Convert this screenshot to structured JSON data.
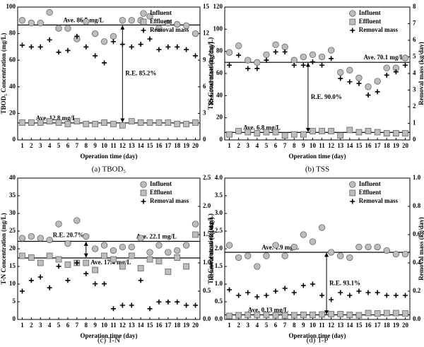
{
  "chart_data": [
    {
      "type": "scatter",
      "caption": "(a)  TBOD₅",
      "xlabel": "Operation time (day)",
      "ylabel": "TBOD₅ Concentration (mg/L)",
      "y2label": "Removal mass (kg/day)",
      "x": [
        1,
        2,
        3,
        4,
        5,
        6,
        7,
        8,
        9,
        10,
        11,
        12,
        13,
        14,
        15,
        16,
        17,
        18,
        19,
        20
      ],
      "xlim": [
        0.5,
        20.5
      ],
      "xticks": [
        1,
        2,
        3,
        4,
        5,
        6,
        7,
        8,
        9,
        10,
        11,
        12,
        13,
        14,
        15,
        16,
        17,
        18,
        19,
        20
      ],
      "ylim": [
        0,
        100
      ],
      "yticks": [
        0,
        20,
        40,
        60,
        80,
        100
      ],
      "y2lim": [
        0,
        15
      ],
      "y2ticks": [
        0,
        3,
        6,
        9,
        12,
        15
      ],
      "series": [
        {
          "name": "Influent",
          "marker": "circle",
          "color": "#bdbdbd",
          "values": [
            90,
            88,
            88,
            96,
            84,
            84,
            76,
            89,
            80,
            74,
            78,
            90,
            90,
            90,
            93,
            84,
            88,
            87,
            86,
            80
          ]
        },
        {
          "name": "Effluent",
          "marker": "square",
          "color": "#bdbdbd",
          "values": [
            13,
            13,
            13,
            14,
            13,
            12,
            14,
            12,
            12,
            13,
            12,
            11,
            14,
            13,
            13,
            13,
            13,
            12,
            12,
            13
          ]
        },
        {
          "name": "Removal mass",
          "marker": "plus",
          "color": "#000000",
          "axis": "y2",
          "values": [
            10.7,
            10.5,
            10.5,
            11.3,
            9.9,
            10.1,
            11.7,
            10.5,
            9.5,
            8.7,
            11.1,
            10.8,
            10.5,
            10.8,
            11.4,
            10.2,
            10.5,
            10.5,
            10.2,
            9.5
          ]
        }
      ],
      "reference_lines": [
        {
          "value": 86.5,
          "label": "Ave. 86.5 mg/L"
        },
        {
          "value": 12.8,
          "label": "Ave. 12.8 mg/L"
        }
      ],
      "removal_efficiency": "R.E. 85.2%"
    },
    {
      "type": "scatter",
      "caption": "(b)  TSS",
      "xlabel": "Operation time (day)",
      "ylabel": "TSS Concentration (mg/L)",
      "y2label": "Removal mass (kg/day)",
      "x": [
        1,
        2,
        3,
        4,
        5,
        6,
        7,
        8,
        9,
        10,
        11,
        12,
        13,
        14,
        15,
        16,
        17,
        18,
        19,
        20
      ],
      "xlim": [
        0.5,
        20.5
      ],
      "xticks": [
        1,
        2,
        3,
        4,
        5,
        6,
        7,
        8,
        9,
        10,
        11,
        12,
        13,
        14,
        15,
        16,
        17,
        18,
        19,
        20
      ],
      "ylim": [
        0,
        120
      ],
      "yticks": [
        0,
        20,
        40,
        60,
        80,
        100,
        120
      ],
      "y2lim": [
        0,
        8
      ],
      "y2ticks": [
        0,
        1,
        2,
        3,
        4,
        5,
        6,
        7,
        8
      ],
      "series": [
        {
          "name": "Influent",
          "marker": "circle",
          "color": "#bdbdbd",
          "values": [
            79,
            85,
            72,
            70,
            77,
            86,
            84,
            72,
            75,
            77,
            75,
            81,
            61,
            63,
            56,
            48,
            53,
            65,
            65,
            74
          ]
        },
        {
          "name": "Effluent",
          "marker": "square",
          "color": "#bdbdbd",
          "values": [
            5,
            8,
            7,
            6,
            7,
            7,
            4,
            5,
            5,
            8,
            8,
            8,
            4,
            9,
            7,
            8,
            7,
            6,
            6,
            6
          ]
        },
        {
          "name": "Removal mass",
          "marker": "plus",
          "color": "#000000",
          "axis": "y2",
          "values": [
            4.5,
            5.1,
            4.3,
            4.3,
            4.8,
            5.3,
            5.3,
            4.5,
            4.5,
            4.7,
            4.5,
            4.9,
            3.7,
            3.5,
            3.4,
            2.7,
            2.9,
            3.9,
            4.1,
            4.5
          ]
        }
      ],
      "reference_lines": [
        {
          "value": 70.1,
          "label": "Ave. 70.1 mg/L"
        },
        {
          "value": 6.8,
          "label": "Ave. 6.8 mg/L"
        }
      ],
      "removal_efficiency": "R.E. 90.0%"
    },
    {
      "type": "scatter",
      "caption": "(c)  T-N",
      "xlabel": "Operation time (day)",
      "ylabel": "T-N Concentration (mg/L)",
      "y2label": "Removal mass (kg/day)",
      "x": [
        1,
        2,
        3,
        4,
        5,
        6,
        7,
        8,
        9,
        10,
        11,
        12,
        13,
        14,
        15,
        16,
        17,
        18,
        19,
        20
      ],
      "xlim": [
        0.5,
        20.5
      ],
      "xticks": [
        1,
        2,
        3,
        4,
        5,
        6,
        7,
        8,
        9,
        10,
        11,
        12,
        13,
        14,
        15,
        16,
        17,
        18,
        19,
        20
      ],
      "ylim": [
        0,
        40
      ],
      "yticks": [
        0,
        5,
        10,
        15,
        20,
        25,
        30,
        35,
        40
      ],
      "y2lim": [
        0,
        2.5
      ],
      "y2ticks": [
        {
          "value": 0,
          "label": "0.0"
        },
        0.5,
        {
          "value": 1,
          "label": "1.0"
        },
        1.5,
        {
          "value": 2,
          "label": "2.0"
        },
        2.5
      ],
      "series": [
        {
          "name": "Influent",
          "marker": "circle",
          "color": "#bdbdbd",
          "values": [
            23,
            23.5,
            23,
            22.5,
            27,
            21.5,
            28,
            23.5,
            20,
            21,
            19.5,
            20.5,
            20.5,
            23,
            19,
            21,
            19,
            19.5,
            21,
            27
          ]
        },
        {
          "name": "Effluent",
          "marker": "square",
          "color": "#bdbdbd",
          "values": [
            18,
            17.5,
            16,
            18,
            17,
            15.5,
            16,
            16,
            14,
            18,
            17,
            15,
            18,
            14.5,
            17,
            16.5,
            13.5,
            17.5,
            15,
            24
          ]
        },
        {
          "name": "Removal mass",
          "marker": "plus",
          "color": "#000000",
          "axis": "y2",
          "values": [
            0.5,
            0.69,
            0.75,
            0.56,
            0.94,
            0.69,
            1.0,
            0.81,
            0.63,
            0.63,
            0.19,
            0.25,
            0.25,
            0.69,
            0.19,
            0.31,
            0.31,
            0.31,
            0.25,
            0.25
          ]
        }
      ],
      "reference_lines": [
        {
          "value": 22.1,
          "label": "Ave. 22.1 mg/L"
        },
        {
          "value": 17.4,
          "label": "Ave. 17.4 mg/L"
        }
      ],
      "removal_efficiency": "R.E. 20.7%"
    },
    {
      "type": "scatter",
      "caption": "(d)  T-P",
      "xlabel": "Operation time (day)",
      "ylabel": "T-P Concentration (mg/L)",
      "y2label": "Removal mass (kg/day)",
      "x": [
        1,
        2,
        3,
        4,
        5,
        6,
        7,
        8,
        9,
        10,
        11,
        12,
        13,
        14,
        15,
        16,
        17,
        18,
        19,
        20
      ],
      "xlim": [
        0.5,
        20.5
      ],
      "xticks": [
        1,
        2,
        3,
        4,
        5,
        6,
        7,
        8,
        9,
        10,
        11,
        12,
        13,
        14,
        15,
        16,
        17,
        18,
        19,
        20
      ],
      "ylim": [
        0,
        4
      ],
      "yticks": [
        {
          "value": 0,
          "label": "0.0"
        },
        0.5,
        {
          "value": 1,
          "label": "1.0"
        },
        1.5,
        {
          "value": 2,
          "label": "2.0"
        },
        2.5,
        {
          "value": 3,
          "label": "3.0"
        },
        3.5,
        {
          "value": 4,
          "label": "4.0"
        }
      ],
      "y2lim": [
        0,
        1
      ],
      "y2ticks": [
        {
          "value": 0,
          "label": "0.0"
        },
        0.2,
        0.4,
        0.6,
        0.8,
        {
          "value": 1,
          "label": "1.0"
        }
      ],
      "series": [
        {
          "name": "Influent",
          "marker": "circle",
          "color": "#bdbdbd",
          "values": [
            2.1,
            1.75,
            1.8,
            1.5,
            1.8,
            2.1,
            1.8,
            2.05,
            2.4,
            2.2,
            2.6,
            1.9,
            1.8,
            1.75,
            2.05,
            2.05,
            2.05,
            1.95,
            1.85,
            1.85
          ]
        },
        {
          "name": "Effluent",
          "marker": "square",
          "color": "#bdbdbd",
          "values": [
            0.1,
            0.12,
            0.13,
            0.13,
            0.13,
            0.12,
            0.11,
            0.12,
            0.13,
            0.13,
            0.14,
            0.15,
            0.15,
            0.13,
            0.12,
            0.18,
            0.17,
            0.18,
            0.18,
            0.17
          ]
        },
        {
          "name": "Removal mass",
          "marker": "plus",
          "color": "#000000",
          "axis": "y2",
          "values": [
            0.21,
            0.17,
            0.19,
            0.16,
            0.17,
            0.2,
            0.22,
            0.19,
            0.24,
            0.25,
            0.17,
            0.14,
            0.19,
            0.17,
            0.2,
            0.19,
            0.19,
            0.17,
            0.17,
            0.17
          ]
        }
      ],
      "reference_lines": [
        {
          "value": 1.9,
          "label": "Ave. 1.9 mg/L"
        },
        {
          "value": 0.13,
          "label": "Ave. 0.13 mg/L"
        }
      ],
      "removal_efficiency": "R.E. 93.1%"
    }
  ]
}
